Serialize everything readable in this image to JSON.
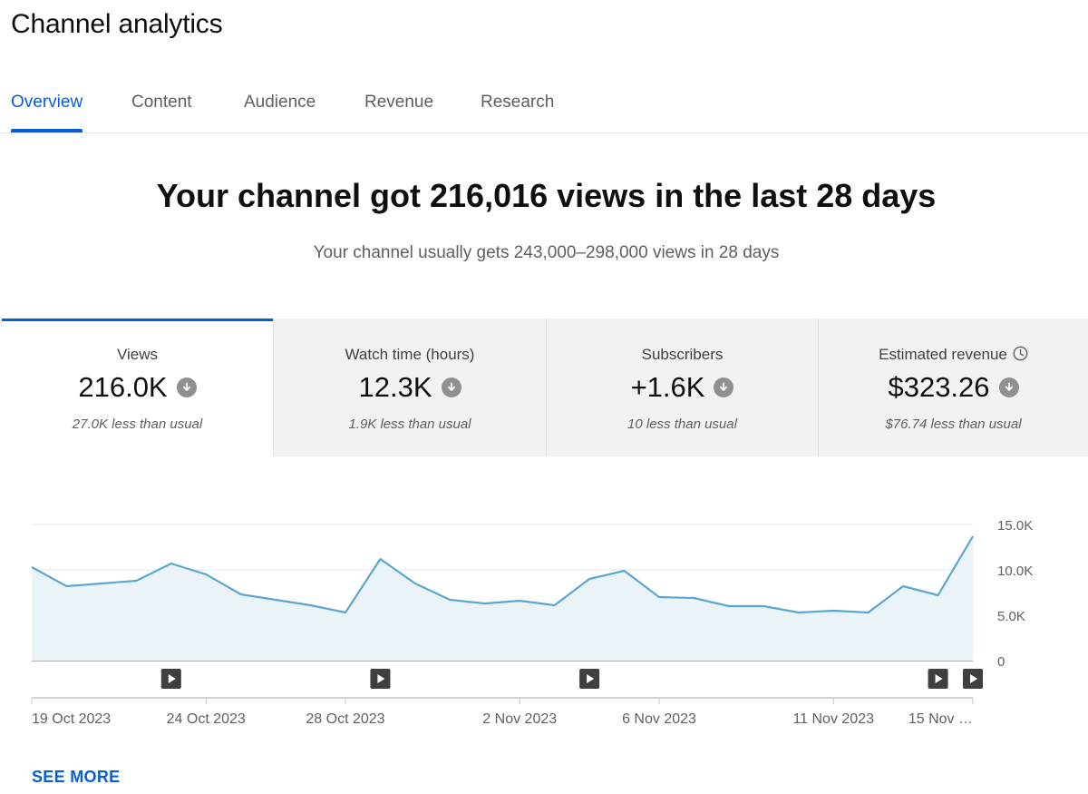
{
  "page": {
    "title": "Channel analytics"
  },
  "tabs": [
    {
      "label": "Overview",
      "active": true
    },
    {
      "label": "Content",
      "active": false
    },
    {
      "label": "Audience",
      "active": false
    },
    {
      "label": "Revenue",
      "active": false
    },
    {
      "label": "Research",
      "active": false
    }
  ],
  "summary": {
    "headline": "Your channel got 216,016 views in the last 28 days",
    "subline": "Your channel usually gets 243,000–298,000 views in 28 days"
  },
  "metrics": [
    {
      "label": "Views",
      "value": "216.0K",
      "note": "27.0K less than usual",
      "selected": true
    },
    {
      "label": "Watch time (hours)",
      "value": "12.3K",
      "note": "1.9K less than usual",
      "selected": false
    },
    {
      "label": "Subscribers",
      "value": "+1.6K",
      "note": "10 less than usual",
      "selected": false
    },
    {
      "label": "Estimated revenue",
      "value": "$323.26",
      "note": "$76.74 less than usual",
      "selected": false
    }
  ],
  "colors": {
    "accent": "#065fd4",
    "line": "#5ba7d1",
    "fill": "#eaf4f8",
    "grid": "#e5e5e5"
  },
  "chart_data": {
    "type": "area",
    "series": [
      {
        "name": "Views",
        "values": [
          10300,
          8200,
          8500,
          8800,
          10700,
          9500,
          7300,
          6700,
          6100,
          5300,
          11200,
          8500,
          6700,
          6300,
          6600,
          6100,
          9000,
          9900,
          7000,
          6900,
          6000,
          6000,
          5300,
          5500,
          5300,
          8200,
          7200,
          13700
        ]
      }
    ],
    "ylim": [
      0,
      15000
    ],
    "yticks": [
      "0",
      "5.0K",
      "10.0K",
      "15.0K"
    ],
    "x_labels": [
      "19 Oct 2023",
      "24 Oct 2023",
      "28 Oct 2023",
      "2 Nov 2023",
      "6 Nov 2023",
      "11 Nov 2023",
      "15 Nov …"
    ],
    "x_label_days": [
      0,
      5,
      9,
      14,
      18,
      23,
      27
    ],
    "video_marker_days": [
      4,
      10,
      16,
      26,
      28
    ]
  },
  "footer": {
    "see_more": "SEE MORE"
  }
}
